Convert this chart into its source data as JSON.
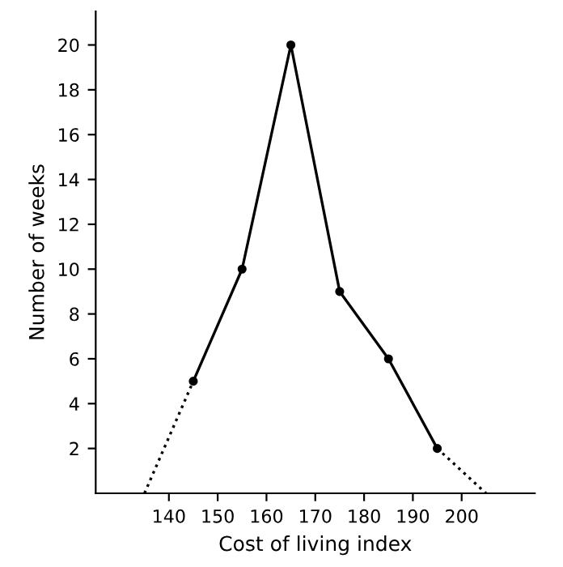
{
  "chart_data": {
    "type": "line",
    "xlabel": "Cost of living index",
    "ylabel": "Number of weeks",
    "xlim": [
      125,
      215
    ],
    "ylim": [
      0,
      21.5
    ],
    "xticks": [
      140,
      150,
      160,
      170,
      180,
      190,
      200
    ],
    "yticks": [
      2,
      4,
      6,
      8,
      10,
      12,
      14,
      16,
      18,
      20
    ],
    "grid": false,
    "series": [
      {
        "x": [
          145,
          155,
          165,
          175,
          185,
          195
        ],
        "values": [
          5,
          10,
          20,
          9,
          6,
          2
        ],
        "color": "#000000",
        "marker": "circle",
        "line_style": "solid"
      },
      {
        "x": [
          135,
          145
        ],
        "values": [
          0,
          5
        ],
        "color": "#000000",
        "marker": "none",
        "line_style": "dotted"
      },
      {
        "x": [
          195,
          205
        ],
        "values": [
          2,
          0
        ],
        "color": "#000000",
        "marker": "none",
        "line_style": "dotted"
      }
    ]
  }
}
